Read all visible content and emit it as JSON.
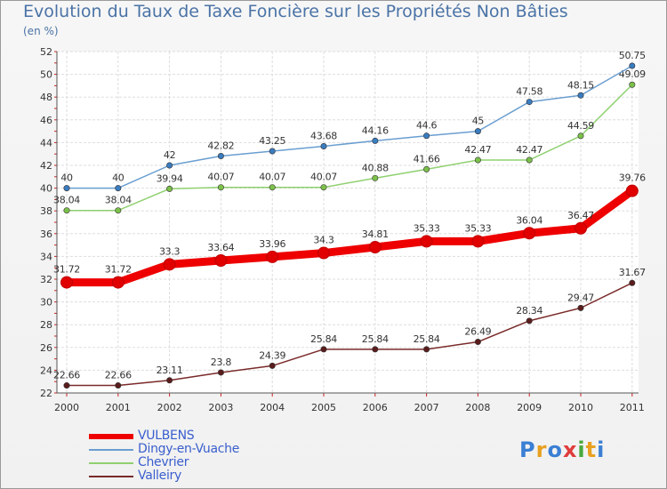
{
  "title": "Evolution du Taux de Taxe Foncière sur les Propriétés Non Bâties",
  "subtitle": "(en %)",
  "logo": {
    "text": "Proxiti",
    "letters": [
      {
        "ch": "P",
        "color": "#3b7fd4"
      },
      {
        "ch": "r",
        "color": "#e8a020"
      },
      {
        "ch": "o",
        "color": "#3b7fd4"
      },
      {
        "ch": "x",
        "color": "#e03c3c"
      },
      {
        "ch": "i",
        "color": "#49a83c"
      },
      {
        "ch": "t",
        "color": "#e8a020"
      },
      {
        "ch": "i",
        "color": "#3b7fd4"
      }
    ]
  },
  "chart_data": {
    "type": "line",
    "title": "Evolution du Taux de Taxe Foncière sur les Propriétés Non Bâties",
    "ylabel": "(en %)",
    "xlabel": "",
    "x": [
      "2000",
      "2001",
      "2002",
      "2003",
      "2004",
      "2005",
      "2006",
      "2007",
      "2008",
      "2009",
      "2010",
      "2011"
    ],
    "ylim": [
      22,
      52
    ],
    "yticks": [
      22,
      24,
      26,
      28,
      30,
      32,
      34,
      36,
      38,
      40,
      42,
      44,
      46,
      48,
      50,
      52
    ],
    "grid": "horizontal",
    "legend_position": "bottom-left",
    "series": [
      {
        "name": "VULBENS",
        "color": "#ee0000",
        "marker": "#e00000",
        "values": [
          31.72,
          31.72,
          33.3,
          33.64,
          33.96,
          34.3,
          34.81,
          35.33,
          35.33,
          36.04,
          36.47,
          39.76
        ],
        "labels": [
          "31.72",
          "31.72",
          "33.3",
          "33.64",
          "33.96",
          "34.3",
          "34.81",
          "35.33",
          "35.33",
          "36.04",
          "36.47",
          "39.76"
        ]
      },
      {
        "name": "Dingy-en-Vuache",
        "color": "#6a9ed0",
        "marker": "#3a7cc0",
        "values": [
          40,
          40,
          42,
          42.82,
          43.25,
          43.68,
          44.16,
          44.6,
          45,
          47.58,
          48.15,
          50.75
        ],
        "labels": [
          "40",
          "40",
          "42",
          "42.82",
          "43.25",
          "43.68",
          "44.16",
          "44.6",
          "45",
          "47.58",
          "48.15",
          "50.75"
        ]
      },
      {
        "name": "Chevrier",
        "color": "#90d070",
        "marker": "#7cc04a",
        "values": [
          38.04,
          38.04,
          39.94,
          40.07,
          40.07,
          40.07,
          40.88,
          41.66,
          42.47,
          42.47,
          44.59,
          49.09
        ],
        "labels": [
          "38.04",
          "38.04",
          "39.94",
          "40.07",
          "40.07",
          "40.07",
          "40.88",
          "41.66",
          "42.47",
          "42.47",
          "44.59",
          "49.09"
        ]
      },
      {
        "name": "Valleiry",
        "color": "#7a2a2a",
        "marker": "#5a1c1c",
        "values": [
          22.66,
          22.66,
          23.11,
          23.8,
          24.39,
          25.84,
          25.84,
          25.84,
          26.49,
          28.34,
          29.47,
          31.67
        ],
        "labels": [
          "22.66",
          "22.66",
          "23.11",
          "23.8",
          "24.39",
          "25.84",
          "25.84",
          "25.84",
          "26.49",
          "28.34",
          "29.47",
          "31.67"
        ]
      }
    ]
  }
}
